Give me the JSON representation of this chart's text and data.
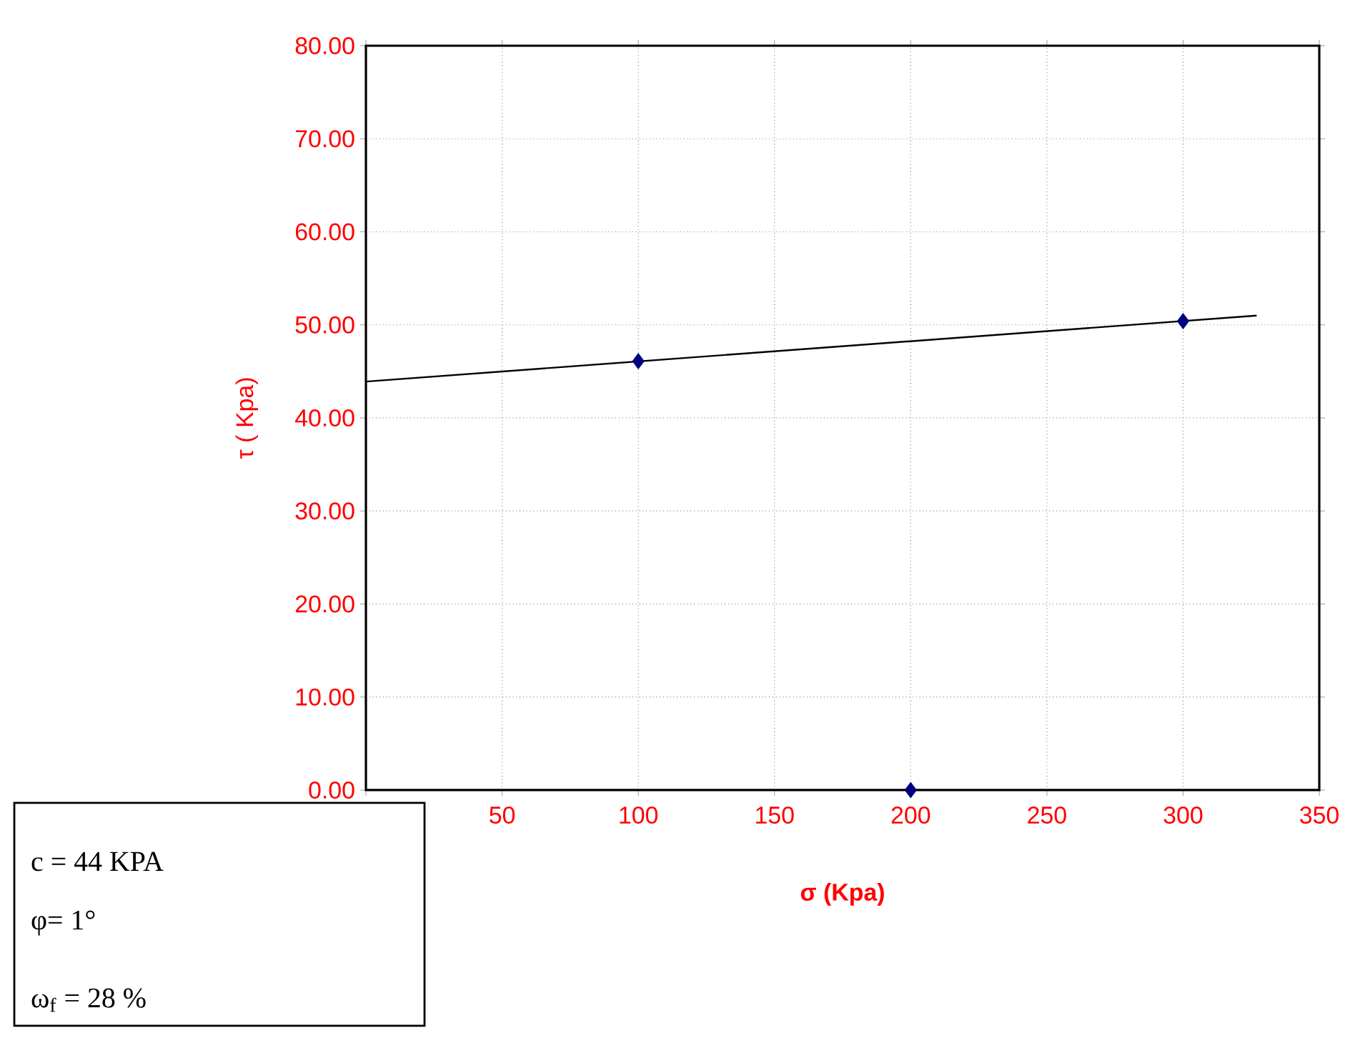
{
  "chart_data": {
    "type": "scatter",
    "xlabel": "σ (Kpa)",
    "ylabel": "τ  ( Kpa)",
    "xlim": [
      0,
      350
    ],
    "ylim": [
      0,
      80
    ],
    "xticks": [
      {
        "value": 0,
        "label": null
      },
      50,
      100,
      150,
      200,
      250,
      300,
      350
    ],
    "yticks": [
      {
        "value": 0,
        "label": "0.00"
      },
      {
        "value": 10,
        "label": "10.00"
      },
      {
        "value": 20,
        "label": "20.00"
      },
      {
        "value": 30,
        "label": "30.00"
      },
      {
        "value": 40,
        "label": "40.00"
      },
      {
        "value": 50,
        "label": "50.00"
      },
      {
        "value": 60,
        "label": "60.00"
      },
      {
        "value": 70,
        "label": "70.00"
      },
      {
        "value": 80,
        "label": "80.00"
      }
    ],
    "grid": true,
    "series": [
      {
        "x": [
          100,
          200,
          300
        ],
        "values": [
          46.1,
          0,
          50.4
        ],
        "color": "#000080",
        "marker": "diamond"
      },
      {
        "type": "line",
        "x": [
          0,
          327
        ],
        "values": [
          43.9,
          51.0
        ],
        "color": "#000000",
        "marker": "none",
        "line_style": "solid"
      }
    ],
    "annotations": [
      "c   = 44 KPA",
      "φ=   1°",
      "ω$_{f}$ =   28 %"
    ]
  }
}
